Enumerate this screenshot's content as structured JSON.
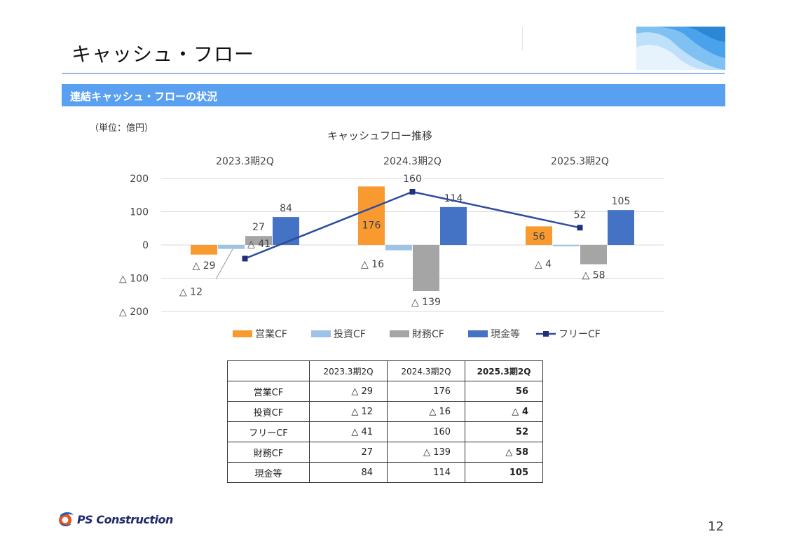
{
  "page_title": "キャッシュ・フロー",
  "section_banner": "連結キャッシュ・フローの状況",
  "unit_label": "（単位：億円）",
  "page_number": "12",
  "logo_text": "PS Construction",
  "colors": {
    "operating": "#f99a30",
    "investing": "#9dc3e6",
    "financial": "#a5a5a5",
    "cash": "#4472c4",
    "free": "#2f4d9c",
    "banner": "#5aa0f0"
  },
  "chart_data": {
    "type": "bar",
    "title": "キャッシュフロー推移",
    "categories": [
      "2023.3期2Q",
      "2024.3期2Q",
      "2025.3期2Q"
    ],
    "ylim": [
      -200,
      200
    ],
    "yticks": [
      200,
      100,
      0,
      -100,
      -200
    ],
    "ytick_labels": [
      "200",
      "100",
      "0",
      "△ 100",
      "△ 200"
    ],
    "grid": true,
    "legend_position": "bottom",
    "series": [
      {
        "name": "営業CF",
        "kind": "bar",
        "color": "#f99a30",
        "values": [
          -29,
          176,
          56
        ],
        "labels": [
          "△ 29",
          "176",
          "56"
        ]
      },
      {
        "name": "投資CF",
        "kind": "bar",
        "color": "#9dc3e6",
        "values": [
          -12,
          -16,
          -4
        ],
        "labels": [
          "△ 12",
          "△ 16",
          "△ 4"
        ]
      },
      {
        "name": "財務CF",
        "kind": "bar",
        "color": "#a5a5a5",
        "values": [
          27,
          -139,
          -58
        ],
        "labels": [
          "27",
          "△ 139",
          "△ 58"
        ]
      },
      {
        "name": "現金等",
        "kind": "bar",
        "color": "#4472c4",
        "values": [
          84,
          114,
          105
        ],
        "labels": [
          "84",
          "114",
          "105"
        ]
      },
      {
        "name": "フリーCF",
        "kind": "line",
        "color": "#2f4d9c",
        "values": [
          -41,
          160,
          52
        ],
        "labels": [
          "△ 41",
          "160",
          "52"
        ]
      }
    ]
  },
  "table": {
    "headers": [
      "",
      "2023.3期2Q",
      "2024.3期2Q",
      "2025.3期2Q"
    ],
    "rows": [
      {
        "label": "営業CF",
        "cells": [
          "△ 29",
          "176",
          "56"
        ]
      },
      {
        "label": "投資CF",
        "cells": [
          "△ 12",
          "△ 16",
          "△ 4"
        ]
      },
      {
        "label": "フリーCF",
        "cells": [
          "△ 41",
          "160",
          "52"
        ]
      },
      {
        "label": "財務CF",
        "cells": [
          "27",
          "△ 139",
          "△ 58"
        ]
      },
      {
        "label": "現金等",
        "cells": [
          "84",
          "114",
          "105"
        ]
      }
    ]
  }
}
